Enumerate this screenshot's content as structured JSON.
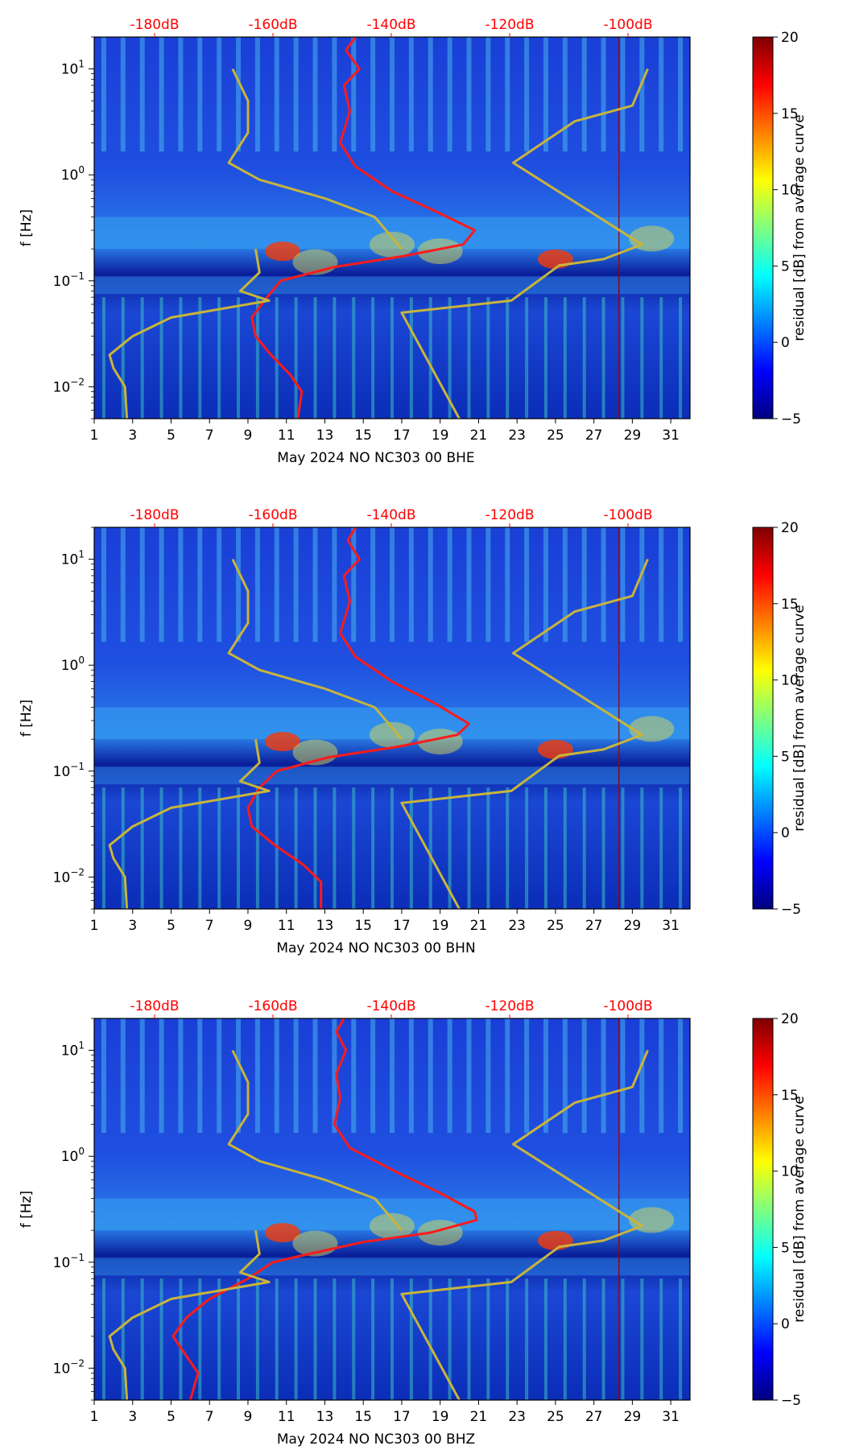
{
  "chart_data": [
    {
      "type": "heatmap",
      "xlabel": "May 2024 NO NC303 00 BHE",
      "ylabel": "f [Hz]",
      "xticks": [
        "1",
        "3",
        "5",
        "7",
        "9",
        "11",
        "13",
        "15",
        "17",
        "19",
        "21",
        "23",
        "25",
        "27",
        "29",
        "31"
      ],
      "xlim": [
        1,
        32
      ],
      "yscale": "log",
      "ylim": [
        0.005,
        20
      ],
      "yticks": [
        "10-2",
        "10-1",
        "100",
        "101"
      ],
      "top_axis_ticks": [
        "-180dB",
        "-160dB",
        "-140dB",
        "-120dB",
        "-100dB"
      ],
      "top_axis_color": "#ff0000",
      "colorbar": {
        "label": "residual [dB] from average curve",
        "ticks": [
          "−5",
          "0",
          "5",
          "10",
          "15",
          "20"
        ],
        "range": [
          -5,
          20
        ],
        "colormap": "jet"
      },
      "series": [
        {
          "color": "#ff1a1a",
          "values": [
            [
              14.6,
              20
            ],
            [
              14.1,
              15
            ],
            [
              14.8,
              10
            ],
            [
              14.0,
              7
            ],
            [
              14.3,
              4
            ],
            [
              13.8,
              2
            ],
            [
              14.6,
              1.2
            ],
            [
              16.5,
              0.7
            ],
            [
              18.8,
              0.45
            ],
            [
              20.8,
              0.3
            ],
            [
              20.2,
              0.22
            ],
            [
              17.0,
              0.17
            ],
            [
              13.5,
              0.135
            ],
            [
              10.7,
              0.1
            ],
            [
              10.0,
              0.07
            ],
            [
              9.2,
              0.045
            ],
            [
              9.4,
              0.03
            ],
            [
              10.2,
              0.02
            ],
            [
              11.2,
              0.013
            ],
            [
              11.8,
              0.009
            ],
            [
              11.6,
              0.005
            ]
          ]
        },
        {
          "color": "#c8b43c",
          "values": [
            [
              9.4,
              0.2
            ],
            [
              9.6,
              0.12
            ],
            [
              8.6,
              0.08
            ],
            [
              10.1,
              0.065
            ],
            [
              5.0,
              0.045
            ],
            [
              3.0,
              0.03
            ],
            [
              1.8,
              0.02
            ],
            [
              2.0,
              0.015
            ],
            [
              2.6,
              0.01
            ],
            [
              2.7,
              0.005
            ]
          ]
        },
        {
          "color": "#c8b43c",
          "values": [
            [
              8.2,
              10
            ],
            [
              9.0,
              5
            ],
            [
              9.0,
              2.5
            ],
            [
              8.0,
              1.3
            ],
            [
              9.6,
              0.9
            ],
            [
              13.0,
              0.6
            ],
            [
              15.6,
              0.4
            ],
            [
              17.0,
              0.2
            ]
          ]
        },
        {
          "color": "#c8b43c",
          "values": [
            [
              29.8,
              10
            ],
            [
              29.0,
              4.5
            ],
            [
              26.0,
              3.2
            ],
            [
              22.8,
              1.3
            ],
            [
              29.5,
              0.22
            ],
            [
              27.5,
              0.16
            ],
            [
              25.2,
              0.14
            ],
            [
              22.7,
              0.065
            ],
            [
              17.0,
              0.05
            ],
            [
              20.0,
              0.005
            ]
          ]
        }
      ]
    },
    {
      "type": "heatmap",
      "xlabel": "May 2024 NO NC303 00 BHN",
      "ylabel": "f [Hz]",
      "xticks": [
        "1",
        "3",
        "5",
        "7",
        "9",
        "11",
        "13",
        "15",
        "17",
        "19",
        "21",
        "23",
        "25",
        "27",
        "29",
        "31"
      ],
      "xlim": [
        1,
        32
      ],
      "yscale": "log",
      "ylim": [
        0.005,
        20
      ],
      "yticks": [
        "10-2",
        "10-1",
        "100",
        "101"
      ],
      "top_axis_ticks": [
        "-180dB",
        "-160dB",
        "-140dB",
        "-120dB",
        "-100dB"
      ],
      "top_axis_color": "#ff0000",
      "colorbar": {
        "label": "residual [dB] from average curve",
        "ticks": [
          "−5",
          "0",
          "5",
          "10",
          "15",
          "20"
        ],
        "range": [
          -5,
          20
        ],
        "colormap": "jet"
      },
      "series": [
        {
          "color": "#ff1a1a",
          "values": [
            [
              14.6,
              20
            ],
            [
              14.2,
              15
            ],
            [
              14.8,
              10
            ],
            [
              14.0,
              7
            ],
            [
              14.3,
              4
            ],
            [
              13.8,
              2
            ],
            [
              14.6,
              1.2
            ],
            [
              16.5,
              0.7
            ],
            [
              18.6,
              0.45
            ],
            [
              20.5,
              0.28
            ],
            [
              19.9,
              0.22
            ],
            [
              16.8,
              0.17
            ],
            [
              13.2,
              0.135
            ],
            [
              10.5,
              0.1
            ],
            [
              9.6,
              0.07
            ],
            [
              9.0,
              0.045
            ],
            [
              9.2,
              0.03
            ],
            [
              10.4,
              0.02
            ],
            [
              11.9,
              0.013
            ],
            [
              12.8,
              0.009
            ],
            [
              12.8,
              0.005
            ]
          ]
        },
        {
          "color": "#c8b43c",
          "values": [
            [
              9.4,
              0.2
            ],
            [
              9.6,
              0.12
            ],
            [
              8.6,
              0.08
            ],
            [
              10.1,
              0.065
            ],
            [
              5.0,
              0.045
            ],
            [
              3.0,
              0.03
            ],
            [
              1.8,
              0.02
            ],
            [
              2.0,
              0.015
            ],
            [
              2.6,
              0.01
            ],
            [
              2.7,
              0.005
            ]
          ]
        },
        {
          "color": "#c8b43c",
          "values": [
            [
              8.2,
              10
            ],
            [
              9.0,
              5
            ],
            [
              9.0,
              2.5
            ],
            [
              8.0,
              1.3
            ],
            [
              9.6,
              0.9
            ],
            [
              13.0,
              0.6
            ],
            [
              15.6,
              0.4
            ],
            [
              17.0,
              0.2
            ]
          ]
        },
        {
          "color": "#c8b43c",
          "values": [
            [
              29.8,
              10
            ],
            [
              29.0,
              4.5
            ],
            [
              26.0,
              3.2
            ],
            [
              22.8,
              1.3
            ],
            [
              29.5,
              0.22
            ],
            [
              27.5,
              0.16
            ],
            [
              25.2,
              0.14
            ],
            [
              22.7,
              0.065
            ],
            [
              17.0,
              0.05
            ],
            [
              20.0,
              0.005
            ]
          ]
        }
      ]
    },
    {
      "type": "heatmap",
      "xlabel": "May 2024 NO NC303 00 BHZ",
      "ylabel": "f [Hz]",
      "xticks": [
        "1",
        "3",
        "5",
        "7",
        "9",
        "11",
        "13",
        "15",
        "17",
        "19",
        "21",
        "23",
        "25",
        "27",
        "29",
        "31"
      ],
      "xlim": [
        1,
        32
      ],
      "yscale": "log",
      "ylim": [
        0.005,
        20
      ],
      "yticks": [
        "10-2",
        "10-1",
        "100",
        "101"
      ],
      "top_axis_ticks": [
        "-180dB",
        "-160dB",
        "-140dB",
        "-120dB",
        "-100dB"
      ],
      "top_axis_color": "#ff0000",
      "colorbar": {
        "label": "residual [dB] from average curve",
        "ticks": [
          "−5",
          "0",
          "5",
          "10",
          "15",
          "20"
        ],
        "range": [
          -5,
          20
        ],
        "colormap": "jet"
      },
      "series": [
        {
          "color": "#ff1a1a",
          "values": [
            [
              14.0,
              20
            ],
            [
              13.6,
              15
            ],
            [
              14.1,
              10
            ],
            [
              13.6,
              6
            ],
            [
              13.8,
              3.5
            ],
            [
              13.5,
              2
            ],
            [
              14.3,
              1.2
            ],
            [
              16.8,
              0.7
            ],
            [
              19.0,
              0.45
            ],
            [
              20.8,
              0.3
            ],
            [
              20.9,
              0.25
            ],
            [
              18.5,
              0.19
            ],
            [
              15.0,
              0.155
            ],
            [
              12.2,
              0.12
            ],
            [
              10.3,
              0.1
            ],
            [
              9.0,
              0.07
            ],
            [
              7.0,
              0.045
            ],
            [
              5.8,
              0.03
            ],
            [
              5.1,
              0.02
            ],
            [
              5.8,
              0.013
            ],
            [
              6.4,
              0.009
            ],
            [
              6.0,
              0.005
            ]
          ]
        },
        {
          "color": "#c8b43c",
          "values": [
            [
              9.4,
              0.2
            ],
            [
              9.6,
              0.12
            ],
            [
              8.6,
              0.08
            ],
            [
              10.1,
              0.065
            ],
            [
              5.0,
              0.045
            ],
            [
              3.0,
              0.03
            ],
            [
              1.8,
              0.02
            ],
            [
              2.0,
              0.015
            ],
            [
              2.6,
              0.01
            ],
            [
              2.7,
              0.005
            ]
          ]
        },
        {
          "color": "#c8b43c",
          "values": [
            [
              8.2,
              10
            ],
            [
              9.0,
              5
            ],
            [
              9.0,
              2.5
            ],
            [
              8.0,
              1.3
            ],
            [
              9.6,
              0.9
            ],
            [
              13.0,
              0.6
            ],
            [
              15.6,
              0.4
            ],
            [
              17.0,
              0.2
            ]
          ]
        },
        {
          "color": "#c8b43c",
          "values": [
            [
              29.8,
              10
            ],
            [
              29.0,
              4.5
            ],
            [
              26.0,
              3.2
            ],
            [
              22.8,
              1.3
            ],
            [
              29.5,
              0.22
            ],
            [
              27.5,
              0.16
            ],
            [
              25.2,
              0.14
            ],
            [
              22.7,
              0.065
            ],
            [
              17.0,
              0.05
            ],
            [
              20.0,
              0.005
            ]
          ]
        }
      ]
    }
  ]
}
